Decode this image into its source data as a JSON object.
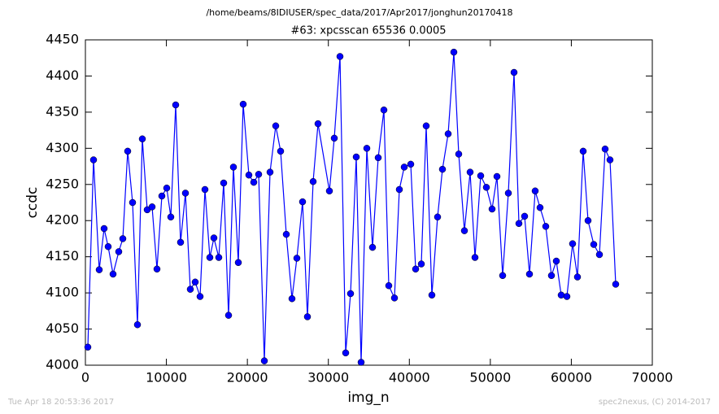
{
  "chart_data": {
    "type": "line",
    "suptitle": "/home/beams/8IDIUSER/spec_data/2017/Apr2017/jonghun20170418",
    "title": "#63: xpcsscan 65536 0.0005",
    "x_label": "img_n",
    "y_label": "ccdc",
    "footer_left": "Tue Apr 18 20:53:36 2017",
    "footer_right": "spec2nexus, (C) 2014-2017",
    "xlim": [
      0,
      70000
    ],
    "xticks": [
      0,
      10000,
      20000,
      30000,
      40000,
      50000,
      60000,
      70000
    ],
    "ylim": [
      4000,
      4450
    ],
    "yticks": [
      4000,
      4050,
      4100,
      4150,
      4200,
      4250,
      4300,
      4350,
      4400,
      4450
    ],
    "grid": false,
    "x": [
      301,
      1004,
      1707,
      2310,
      2812,
      3415,
      4118,
      4620,
      5222,
      5825,
      6428,
      7030,
      7633,
      8235,
      8838,
      9440,
      10043,
      10545,
      11148,
      11750,
      12353,
      12955,
      13558,
      14161,
      14763,
      15366,
      15868,
      16471,
      17073,
      17676,
      18278,
      18881,
      19483,
      20186,
      20789,
      21392,
      22095,
      22798,
      23501,
      24103,
      24806,
      25509,
      26112,
      26815,
      27417,
      28120,
      28723,
      30129,
      30732,
      31435,
      32138,
      32740,
      33443,
      34046,
      34749,
      35452,
      36155,
      36858,
      37460,
      38163,
      38766,
      39369,
      40172,
      40775,
      41478,
      42080,
      42783,
      43486,
      44089,
      44792,
      45495,
      46097,
      46800,
      47503,
      48106,
      48809,
      49512,
      50215,
      50818,
      51521,
      52224,
      52927,
      53529,
      54232,
      54835,
      55538,
      56140,
      56843,
      57546,
      58149,
      58751,
      59454,
      60157,
      60760,
      61463,
      62066,
      62769,
      63472,
      64174,
      64777,
      65480
    ],
    "series": [
      {
        "color": "#0000ff",
        "values": [
          4025,
          4284,
          4132,
          4189,
          4164,
          4126,
          4157,
          4175,
          4296,
          4225,
          4056,
          4313,
          4215,
          4219,
          4133,
          4234,
          4245,
          4205,
          4360,
          4170,
          4238,
          4105,
          4115,
          4095,
          4243,
          4149,
          4176,
          4149,
          4252,
          4069,
          4274,
          4142,
          4361,
          4263,
          4253,
          4264,
          4006,
          4267,
          4331,
          4296,
          4181,
          4092,
          4148,
          4226,
          4067,
          4254,
          4334,
          4241,
          4314,
          4427,
          4017,
          4099,
          4288,
          4004,
          4300,
          4163,
          4287,
          4353,
          4110,
          4093,
          4243,
          4274,
          4278,
          4133,
          4140,
          4331,
          4097,
          4205,
          4271,
          4320,
          4433,
          4292,
          4186,
          4267,
          4149,
          4262,
          4246,
          4216,
          4261,
          4124,
          4238,
          4405,
          4196,
          4206,
          4126,
          4241,
          4218,
          4192,
          4124,
          4144,
          4097,
          4095,
          4168,
          4122,
          4296,
          4200,
          4167,
          4153,
          4299,
          4284,
          4112
        ]
      }
    ]
  }
}
